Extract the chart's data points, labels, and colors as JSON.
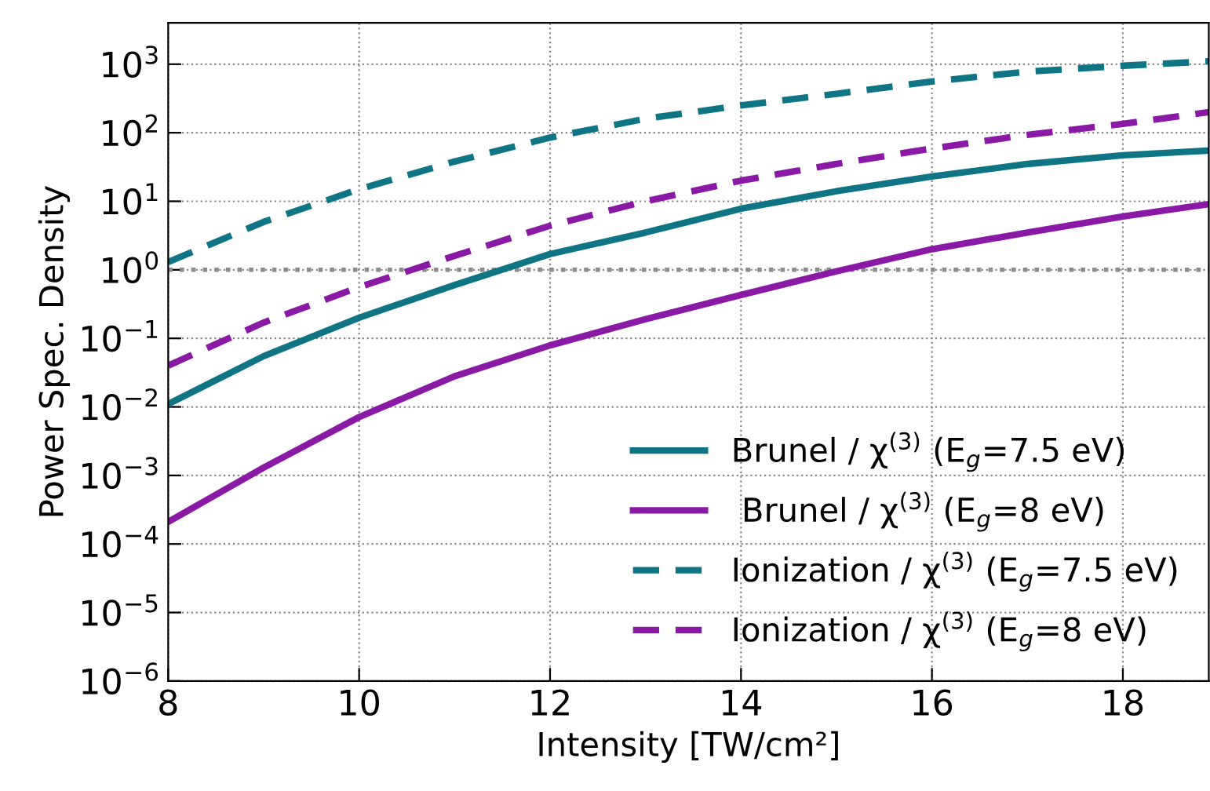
{
  "chart_data": {
    "type": "line",
    "xlabel": "Intensity [TW/cm²]",
    "ylabel": "Power Spec. Density",
    "log": "y",
    "grid": true,
    "legend": "lower right",
    "x": [
      8,
      9,
      10,
      11,
      12,
      13,
      14,
      15,
      16,
      17,
      18,
      18.9
    ],
    "xlim": [
      8,
      18.9
    ],
    "xticks": [
      8,
      10,
      12,
      14,
      16,
      18
    ],
    "ylim": [
      1e-06,
      4000
    ],
    "yticks": [
      {
        "value": 1e-06,
        "label": "10$^{−6}$"
      },
      {
        "value": 1e-05,
        "label": "10$^{−5}$"
      },
      {
        "value": 0.0001,
        "label": "10$^{−4}$"
      },
      {
        "value": 0.001,
        "label": "10$^{−3}$"
      },
      {
        "value": 0.01,
        "label": "10$^{−2}$"
      },
      {
        "value": 0.1,
        "label": "10$^{−1}$"
      },
      {
        "value": 1,
        "label": "10$^{0}$"
      },
      {
        "value": 10,
        "label": "10$^{1}$"
      },
      {
        "value": 100,
        "label": "10$^{2}$"
      },
      {
        "value": 1000,
        "label": "10$^{3}$"
      }
    ],
    "ref_lines": [
      {
        "axis": "y",
        "value": 1,
        "color": "#8c8c8c",
        "line_style": "dotted"
      }
    ],
    "series": [
      {
        "name": "Brunel / χ$^{(3)}$ (E$_{g}$=7.5 eV)",
        "color": "#0f7585",
        "line_style": "solid",
        "values": [
          0.011,
          0.055,
          0.2,
          0.6,
          1.7,
          3.5,
          7.8,
          14,
          23,
          35,
          47,
          55
        ]
      },
      {
        "name": " Brunel / χ$^{(3)}$ (E$_{g}$=8 eV)",
        "color": "#8a1aa6",
        "line_style": "solid",
        "values": [
          0.00021,
          0.0013,
          0.0071,
          0.028,
          0.079,
          0.19,
          0.43,
          0.95,
          2.0,
          3.5,
          6.0,
          9.1
        ]
      },
      {
        "name": "Ionization / χ$^{(3)}$ (E$_{g}$=7.5 eV)",
        "color": "#0f7585",
        "line_style": "dashed",
        "values": [
          1.3,
          5,
          15,
          38,
          85,
          160,
          250,
          370,
          560,
          780,
          950,
          1100
        ]
      },
      {
        "name": "Ionization / χ$^{(3)}$ (E$_{g}$=8 eV)",
        "color": "#8a1aa6",
        "line_style": "dashed",
        "values": [
          0.04,
          0.17,
          0.56,
          1.6,
          4.4,
          10,
          20,
          35,
          59,
          93,
          135,
          200
        ]
      }
    ]
  }
}
